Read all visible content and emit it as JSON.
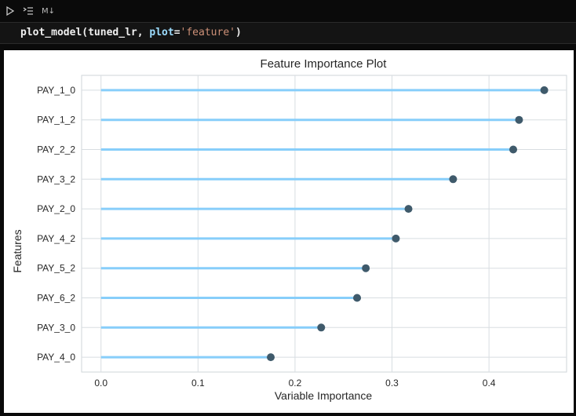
{
  "toolbar": {
    "run_icon": "play-icon",
    "outline_icon": "list-icon",
    "cell_type_label": "M↓"
  },
  "code": {
    "func": "plot_model",
    "arg": "tuned_lr",
    "kw": "plot",
    "str": "'feature'"
  },
  "colors": {
    "line": "#87cefa",
    "dot": "#3f5a6b",
    "grid": "#d8dde1",
    "frame": "#cfd5da",
    "text": "#262626"
  },
  "chart_data": {
    "type": "lollipop",
    "title": "Feature Importance Plot",
    "xlabel": "Variable Importance",
    "ylabel": "Features",
    "xlim": [
      -0.02,
      0.48
    ],
    "xticks": [
      0.0,
      0.1,
      0.2,
      0.3,
      0.4
    ],
    "xtick_labels": [
      "0.0",
      "0.1",
      "0.2",
      "0.3",
      "0.4"
    ],
    "grid": true,
    "categories": [
      "PAY_1_0",
      "PAY_1_2",
      "PAY_2_2",
      "PAY_3_2",
      "PAY_2_0",
      "PAY_4_2",
      "PAY_5_2",
      "PAY_6_2",
      "PAY_3_0",
      "PAY_4_0"
    ],
    "values": [
      0.457,
      0.431,
      0.425,
      0.363,
      0.317,
      0.304,
      0.273,
      0.264,
      0.227,
      0.175
    ]
  }
}
